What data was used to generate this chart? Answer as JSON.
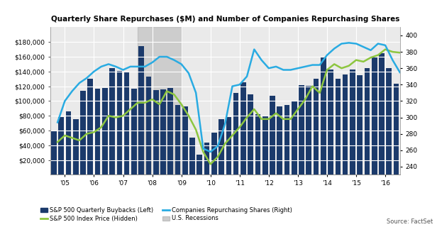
{
  "title": "Quarterly Share Repurchases ($M) and Number of Companies Repurchasing Shares",
  "source": "Source: FactSet",
  "bar_color": "#1B3A6B",
  "recession_color": "#AAAAAA",
  "recession_alpha": 0.45,
  "ylim_left": [
    0,
    200000
  ],
  "ylim_right": [
    230,
    410
  ],
  "yticks_left": [
    20000,
    40000,
    60000,
    80000,
    100000,
    120000,
    140000,
    160000,
    180000
  ],
  "ytick_labels_left": [
    "$20,000",
    "$40,000",
    "$60,000",
    "$80,000",
    "$100,000",
    "$120,000",
    "$140,000",
    "$160,000",
    "$180,000"
  ],
  "yticks_right": [
    240,
    260,
    280,
    300,
    320,
    340,
    360,
    380,
    400
  ],
  "xtick_labels": [
    "'05",
    "'06",
    "'07",
    "'08",
    "'09",
    "'10",
    "'11",
    "'12",
    "'13",
    "'14",
    "'15",
    "'16"
  ],
  "bar_values": [
    59000,
    78000,
    86000,
    75000,
    114000,
    130000,
    117000,
    118000,
    145000,
    141000,
    140000,
    117000,
    174000,
    133000,
    115000,
    116000,
    118000,
    95000,
    93000,
    50000,
    27000,
    44000,
    57000,
    75000,
    78000,
    111000,
    125000,
    109000,
    82000,
    80000,
    107000,
    93000,
    95000,
    100000,
    122000,
    121000,
    130000,
    159000,
    143000,
    130000,
    136000,
    143000,
    135000,
    145000,
    160000,
    165000,
    145000,
    123000
  ],
  "sp500_y": [
    270,
    278,
    275,
    272,
    280,
    282,
    288,
    302,
    300,
    302,
    310,
    318,
    318,
    322,
    316,
    332,
    328,
    316,
    302,
    285,
    258,
    243,
    252,
    268,
    278,
    288,
    300,
    310,
    298,
    298,
    305,
    298,
    298,
    310,
    322,
    338,
    330,
    358,
    365,
    360,
    363,
    370,
    368,
    373,
    376,
    383,
    380,
    379
  ],
  "companies_y": [
    294,
    320,
    332,
    342,
    348,
    356,
    362,
    365,
    362,
    358,
    362,
    362,
    362,
    367,
    374,
    374,
    370,
    365,
    354,
    330,
    262,
    258,
    265,
    292,
    338,
    340,
    350,
    383,
    370,
    360,
    362,
    358,
    358,
    360,
    362,
    364,
    364,
    376,
    384,
    390,
    391,
    390,
    386,
    382,
    390,
    388,
    370,
    355
  ],
  "sp500_color": "#8DC63F",
  "companies_color": "#29ABE2",
  "background_color": "#EAEAEA",
  "grid_color": "#FFFFFF",
  "bar_width": 0.75
}
